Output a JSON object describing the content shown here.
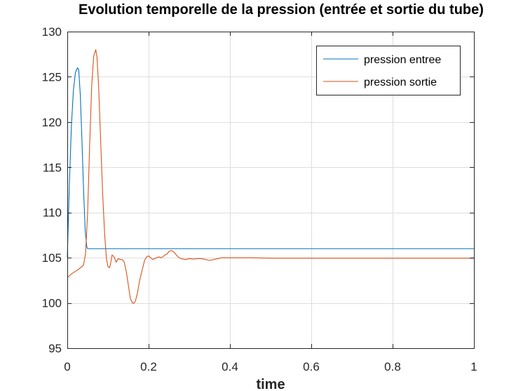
{
  "chart_data": {
    "type": "line",
    "title": "Evolution temporelle de la pression (entrée et sortie du tube)",
    "xlabel": "time",
    "ylabel": "",
    "xlim": [
      0,
      1
    ],
    "ylim": [
      95,
      130
    ],
    "xticks": [
      0,
      0.2,
      0.4,
      0.6,
      0.8,
      1
    ],
    "xtick_labels": [
      "0",
      "0.2",
      "0.4",
      "0.6",
      "0.8",
      "1"
    ],
    "yticks": [
      95,
      100,
      105,
      110,
      115,
      120,
      125,
      130
    ],
    "ytick_labels": [
      "95",
      "100",
      "105",
      "110",
      "115",
      "120",
      "125",
      "130"
    ],
    "grid": true,
    "legend_position": "top-right",
    "series": [
      {
        "name": "pression entree",
        "color": "#0072BD",
        "x": [
          0,
          0.005,
          0.01,
          0.015,
          0.02,
          0.025,
          0.028,
          0.032,
          0.036,
          0.04,
          0.044,
          0.048,
          0.05,
          0.052,
          0.054,
          0.1,
          0.2,
          0.3,
          0.4,
          0.5,
          0.6,
          0.7,
          0.8,
          0.9,
          1.0
        ],
        "y": [
          105.0,
          113.0,
          119.5,
          123.5,
          125.5,
          126.0,
          125.8,
          123.0,
          118.0,
          112.5,
          108.0,
          106.2,
          106.0,
          106.0,
          106.0,
          106.0,
          106.0,
          106.0,
          106.0,
          106.0,
          106.0,
          106.0,
          106.0,
          106.0,
          106.0
        ]
      },
      {
        "name": "pression sortie",
        "color": "#D95319",
        "x": [
          0,
          0.01,
          0.02,
          0.03,
          0.04,
          0.045,
          0.05,
          0.055,
          0.06,
          0.065,
          0.07,
          0.073,
          0.077,
          0.082,
          0.087,
          0.092,
          0.096,
          0.1,
          0.104,
          0.107,
          0.11,
          0.115,
          0.12,
          0.125,
          0.13,
          0.135,
          0.14,
          0.145,
          0.15,
          0.155,
          0.16,
          0.165,
          0.168,
          0.172,
          0.178,
          0.185,
          0.19,
          0.195,
          0.2,
          0.205,
          0.21,
          0.215,
          0.22,
          0.225,
          0.23,
          0.235,
          0.24,
          0.245,
          0.25,
          0.255,
          0.26,
          0.265,
          0.27,
          0.275,
          0.28,
          0.29,
          0.3,
          0.31,
          0.32,
          0.33,
          0.34,
          0.35,
          0.36,
          0.37,
          0.38,
          0.4,
          0.45,
          0.5,
          0.6,
          0.7,
          0.8,
          0.9,
          1.0
        ],
        "y": [
          102.8,
          103.2,
          103.5,
          103.8,
          104.2,
          105.5,
          110.0,
          117.5,
          124.0,
          127.3,
          128.0,
          127.2,
          124.0,
          118.0,
          112.0,
          107.5,
          105.0,
          104.0,
          103.9,
          104.5,
          105.3,
          105.1,
          104.5,
          104.9,
          104.8,
          104.8,
          104.5,
          103.5,
          102.0,
          100.5,
          100.0,
          100.0,
          100.3,
          101.0,
          102.5,
          103.8,
          104.7,
          105.1,
          105.2,
          105.0,
          104.8,
          104.9,
          105.0,
          105.1,
          105.0,
          105.1,
          105.3,
          105.4,
          105.7,
          105.8,
          105.7,
          105.5,
          105.2,
          105.0,
          104.9,
          104.8,
          104.9,
          104.85,
          104.9,
          104.9,
          104.8,
          104.7,
          104.8,
          104.9,
          105.0,
          105.0,
          105.0,
          104.95,
          104.95,
          104.95,
          104.95,
          104.95,
          104.95
        ]
      }
    ]
  }
}
